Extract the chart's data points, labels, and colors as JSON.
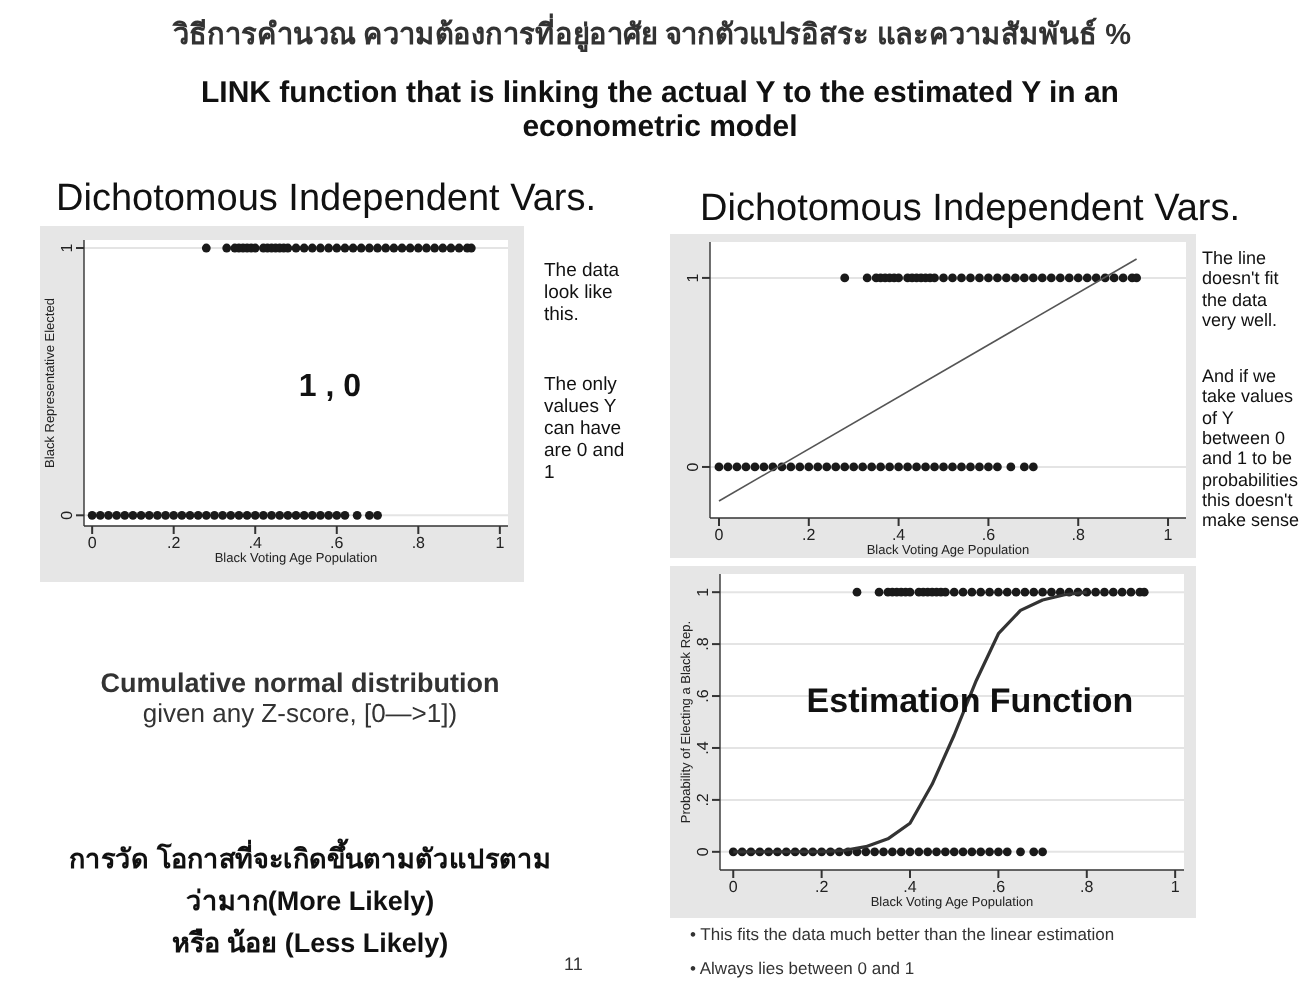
{
  "chart_data": [
    {
      "type": "scatter",
      "title": "Dichotomous Independent Vars.",
      "xlabel": "Black Voting Age Population",
      "ylabel": "Black Representative Elected",
      "marker": "circle",
      "grid": "y",
      "xlim": [
        -0.02,
        1.02
      ],
      "ylim": [
        -0.04,
        1.03
      ],
      "xticks": [
        {
          "value": 0,
          "label": "0"
        },
        {
          "value": 0.2,
          "label": ".2"
        },
        {
          "value": 0.4,
          "label": ".4"
        },
        {
          "value": 0.6,
          "label": ".6"
        },
        {
          "value": 0.8,
          "label": ".8"
        },
        {
          "value": 1,
          "label": "1"
        }
      ],
      "yticks": [
        {
          "value": 0,
          "label": "0"
        },
        {
          "value": 1,
          "label": "1"
        }
      ],
      "series": [
        {
          "color": "#1a1a1a",
          "x": [
            0,
            0.02,
            0.04,
            0.06,
            0.08,
            0.1,
            0.12,
            0.14,
            0.16,
            0.18,
            0.2,
            0.22,
            0.24,
            0.26,
            0.28,
            0.3,
            0.32,
            0.34,
            0.36,
            0.38,
            0.4,
            0.42,
            0.44,
            0.46,
            0.48,
            0.5,
            0.52,
            0.54,
            0.56,
            0.58,
            0.6,
            0.62,
            0.65,
            0.68,
            0.7
          ],
          "values": [
            0,
            0,
            0,
            0,
            0,
            0,
            0,
            0,
            0,
            0,
            0,
            0,
            0,
            0,
            0,
            0,
            0,
            0,
            0,
            0,
            0,
            0,
            0,
            0,
            0,
            0,
            0,
            0,
            0,
            0,
            0,
            0,
            0,
            0,
            0
          ]
        },
        {
          "color": "#1a1a1a",
          "x": [
            0.28,
            0.33,
            0.35,
            0.36,
            0.37,
            0.38,
            0.39,
            0.4,
            0.42,
            0.43,
            0.44,
            0.45,
            0.46,
            0.47,
            0.48,
            0.5,
            0.52,
            0.54,
            0.56,
            0.58,
            0.6,
            0.62,
            0.64,
            0.66,
            0.68,
            0.7,
            0.72,
            0.74,
            0.76,
            0.78,
            0.8,
            0.82,
            0.84,
            0.86,
            0.88,
            0.9,
            0.92,
            0.93
          ],
          "values": [
            1,
            1,
            1,
            1,
            1,
            1,
            1,
            1,
            1,
            1,
            1,
            1,
            1,
            1,
            1,
            1,
            1,
            1,
            1,
            1,
            1,
            1,
            1,
            1,
            1,
            1,
            1,
            1,
            1,
            1,
            1,
            1,
            1,
            1,
            1,
            1,
            1,
            1
          ]
        }
      ],
      "annotations": [
        "วิธีการคำนวณ ความต้องการที่อยู่อาศัย จากตัวแปรอิสระ และความสัมพันธ์ %",
        "LINK function that is linking the actual Y to the estimated Y in an econometric model",
        "1 , 0",
        "The data look like this.",
        "The only values Y can have are 0 and 1",
        "Cumulative normal distribution",
        "given any Z-score, [0—>1])",
        "การวัด โอกาสที่จะเกิดขึ้นตามตัวแปรตาม",
        "ว่ามาก(More Likely)",
        "หรือ น้อย (Less Likely)"
      ]
    },
    {
      "type": "scatter",
      "title": "Dichotomous Independent Vars.",
      "xlabel": "Black Voting Age Population",
      "marker": "circle",
      "grid": "y",
      "xlim": [
        -0.02,
        1.04
      ],
      "ylim": [
        -0.27,
        1.19
      ],
      "xticks": [
        {
          "value": 0,
          "label": "0"
        },
        {
          "value": 0.2,
          "label": ".2"
        },
        {
          "value": 0.4,
          "label": ".4"
        },
        {
          "value": 0.6,
          "label": ".6"
        },
        {
          "value": 0.8,
          "label": ".8"
        },
        {
          "value": 1,
          "label": "1"
        }
      ],
      "yticks": [
        {
          "value": 0,
          "label": "0"
        },
        {
          "value": 1,
          "label": "1"
        }
      ],
      "series": [
        {
          "color": "#1a1a1a",
          "x": [
            0,
            0.02,
            0.04,
            0.06,
            0.08,
            0.1,
            0.12,
            0.14,
            0.16,
            0.18,
            0.2,
            0.22,
            0.24,
            0.26,
            0.28,
            0.3,
            0.32,
            0.34,
            0.36,
            0.38,
            0.4,
            0.42,
            0.44,
            0.46,
            0.48,
            0.5,
            0.52,
            0.54,
            0.56,
            0.58,
            0.6,
            0.62,
            0.65,
            0.68,
            0.7
          ],
          "values": [
            0,
            0,
            0,
            0,
            0,
            0,
            0,
            0,
            0,
            0,
            0,
            0,
            0,
            0,
            0,
            0,
            0,
            0,
            0,
            0,
            0,
            0,
            0,
            0,
            0,
            0,
            0,
            0,
            0,
            0,
            0,
            0,
            0,
            0,
            0
          ]
        },
        {
          "color": "#1a1a1a",
          "x": [
            0.28,
            0.33,
            0.35,
            0.36,
            0.37,
            0.38,
            0.39,
            0.4,
            0.42,
            0.43,
            0.44,
            0.45,
            0.46,
            0.47,
            0.48,
            0.5,
            0.52,
            0.54,
            0.56,
            0.58,
            0.6,
            0.62,
            0.64,
            0.66,
            0.68,
            0.7,
            0.72,
            0.74,
            0.76,
            0.78,
            0.8,
            0.82,
            0.84,
            0.86,
            0.88,
            0.9,
            0.92,
            0.93
          ],
          "values": [
            1,
            1,
            1,
            1,
            1,
            1,
            1,
            1,
            1,
            1,
            1,
            1,
            1,
            1,
            1,
            1,
            1,
            1,
            1,
            1,
            1,
            1,
            1,
            1,
            1,
            1,
            1,
            1,
            1,
            1,
            1,
            1,
            1,
            1,
            1,
            1,
            1,
            1
          ]
        },
        {
          "type": "line",
          "marker": "none",
          "color": "#555555",
          "x": [
            0,
            0.93
          ],
          "values": [
            -0.18,
            1.1
          ]
        }
      ],
      "annotations": [
        "The line doesn't fit the data very well.",
        "And if we take values of Y between 0 and 1 to be probabilities this doesn't make sense"
      ]
    },
    {
      "type": "scatter",
      "xlabel": "Black Voting Age Population",
      "ylabel": "Probability of Electing a Black Rep.",
      "marker": "circle",
      "grid": "y",
      "xlim": [
        -0.03,
        1.02
      ],
      "ylim": [
        -0.07,
        1.07
      ],
      "xticks": [
        {
          "value": 0,
          "label": "0"
        },
        {
          "value": 0.2,
          "label": ".2"
        },
        {
          "value": 0.4,
          "label": ".4"
        },
        {
          "value": 0.6,
          "label": ".6"
        },
        {
          "value": 0.8,
          "label": ".8"
        },
        {
          "value": 1,
          "label": "1"
        }
      ],
      "yticks": [
        {
          "value": 0,
          "label": "0"
        },
        {
          "value": 0.2,
          "label": ".2"
        },
        {
          "value": 0.4,
          "label": ".4"
        },
        {
          "value": 0.6,
          "label": ".6"
        },
        {
          "value": 0.8,
          "label": ".8"
        },
        {
          "value": 1,
          "label": "1"
        }
      ],
      "series": [
        {
          "color": "#1a1a1a",
          "x": [
            0,
            0.02,
            0.04,
            0.06,
            0.08,
            0.1,
            0.12,
            0.14,
            0.16,
            0.18,
            0.2,
            0.22,
            0.24,
            0.26,
            0.28,
            0.3,
            0.32,
            0.34,
            0.36,
            0.38,
            0.4,
            0.42,
            0.44,
            0.46,
            0.48,
            0.5,
            0.52,
            0.54,
            0.56,
            0.58,
            0.6,
            0.62,
            0.65,
            0.68,
            0.7
          ],
          "values": [
            0,
            0,
            0,
            0,
            0,
            0,
            0,
            0,
            0,
            0,
            0,
            0,
            0,
            0,
            0,
            0,
            0,
            0,
            0,
            0,
            0,
            0,
            0,
            0,
            0,
            0,
            0,
            0,
            0,
            0,
            0,
            0,
            0,
            0,
            0
          ]
        },
        {
          "color": "#1a1a1a",
          "x": [
            0.28,
            0.33,
            0.35,
            0.36,
            0.37,
            0.38,
            0.39,
            0.4,
            0.42,
            0.43,
            0.44,
            0.45,
            0.46,
            0.47,
            0.48,
            0.5,
            0.52,
            0.54,
            0.56,
            0.58,
            0.6,
            0.62,
            0.64,
            0.66,
            0.68,
            0.7,
            0.72,
            0.74,
            0.76,
            0.78,
            0.8,
            0.82,
            0.84,
            0.86,
            0.88,
            0.9,
            0.92,
            0.93
          ],
          "values": [
            1,
            1,
            1,
            1,
            1,
            1,
            1,
            1,
            1,
            1,
            1,
            1,
            1,
            1,
            1,
            1,
            1,
            1,
            1,
            1,
            1,
            1,
            1,
            1,
            1,
            1,
            1,
            1,
            1,
            1,
            1,
            1,
            1,
            1,
            1,
            1,
            1,
            1
          ]
        },
        {
          "type": "line",
          "marker": "none",
          "color": "#333333",
          "x": [
            0,
            0.2,
            0.25,
            0.3,
            0.35,
            0.4,
            0.45,
            0.5,
            0.55,
            0.6,
            0.65,
            0.7,
            0.75,
            0.8
          ],
          "values": [
            0,
            0.001,
            0.005,
            0.02,
            0.05,
            0.11,
            0.26,
            0.45,
            0.66,
            0.84,
            0.93,
            0.97,
            0.99,
            1.0
          ]
        }
      ],
      "annotations": [
        "Estimation Function",
        "• This fits the data much better than the linear estimation",
        "• Always lies between 0 and 1",
        "11"
      ]
    }
  ]
}
